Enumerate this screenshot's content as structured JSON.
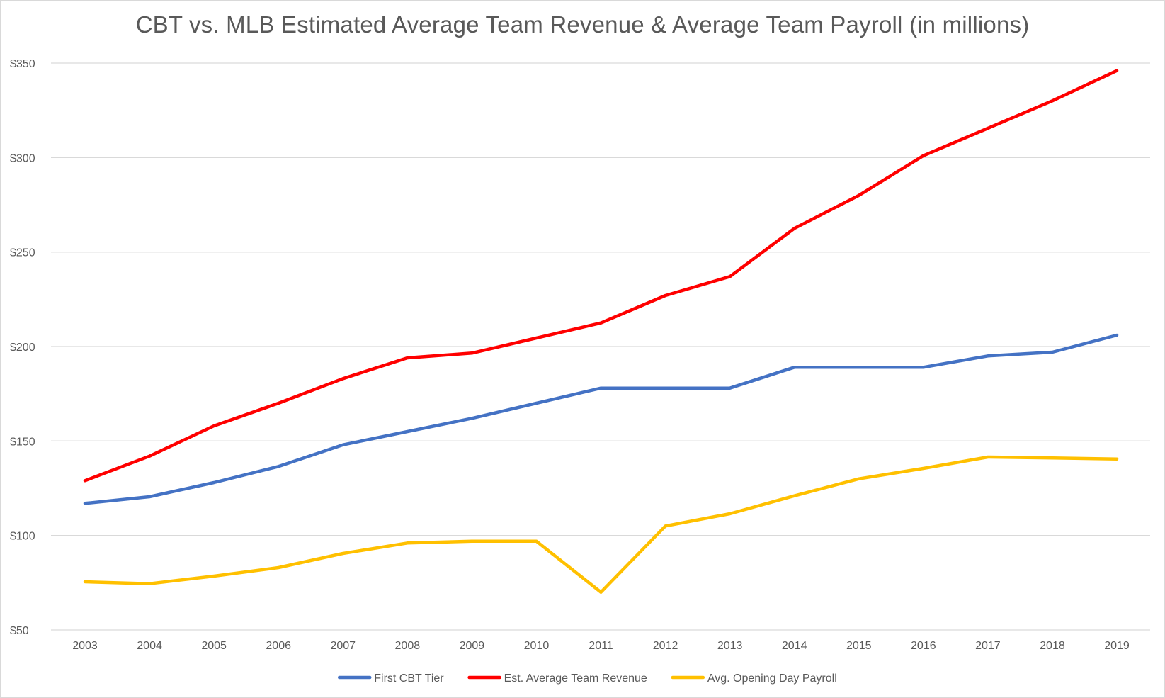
{
  "chart_data": {
    "type": "line",
    "title": "CBT vs. MLB Estimated Average Team Revenue & Average Team Payroll (in millions)",
    "xlabel": "",
    "ylabel": "",
    "categories": [
      "2003",
      "2004",
      "2005",
      "2006",
      "2007",
      "2008",
      "2009",
      "2010",
      "2011",
      "2012",
      "2013",
      "2014",
      "2015",
      "2016",
      "2017",
      "2018",
      "2019"
    ],
    "ylim": [
      50,
      350
    ],
    "yticks": [
      50,
      100,
      150,
      200,
      250,
      300,
      350
    ],
    "ytick_labels": [
      "$50",
      "$100",
      "$150",
      "$200",
      "$250",
      "$300",
      "$350"
    ],
    "grid": true,
    "legend_position": "bottom",
    "series": [
      {
        "name": "First CBT Tier",
        "color": "#4472c4",
        "values": [
          117,
          120.5,
          128,
          136.5,
          148,
          155,
          162,
          170,
          178,
          178,
          178,
          189,
          189,
          189,
          195,
          197,
          206
        ]
      },
      {
        "name": "Est. Average Team Revenue",
        "color": "#ff0000",
        "values": [
          129,
          142,
          158,
          170,
          183,
          194,
          196.5,
          204.5,
          212.5,
          227,
          237,
          262.5,
          280,
          301,
          315.5,
          330,
          346
        ]
      },
      {
        "name": "Avg. Opening Day Payroll",
        "color": "#ffc000",
        "values": [
          75.5,
          74.5,
          78.5,
          83,
          90.5,
          96,
          97,
          97,
          70,
          105,
          111.5,
          121,
          130,
          135.5,
          141.5,
          141,
          140.5
        ]
      }
    ]
  }
}
